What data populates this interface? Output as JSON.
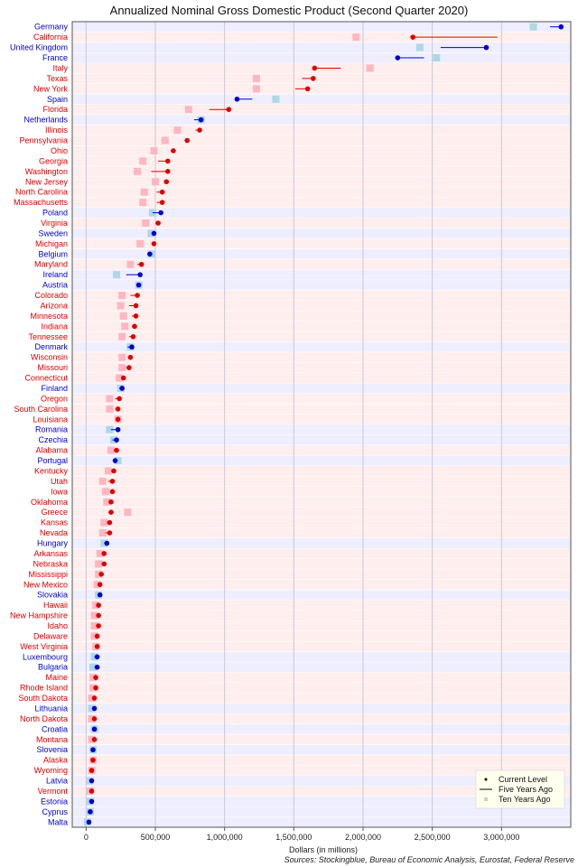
{
  "chart_data": {
    "type": "dot",
    "title": "Annualized Nominal Gross Domestic Product (Second Quarter 2020)",
    "xlabel": "Dollars (in millions)",
    "source": "Sources: Stockingblue, Bureau of Economic Analysis, Eurostat, Federal Reserve",
    "xlim": [
      -100000,
      3500000
    ],
    "xticks": [
      0,
      500000,
      1000000,
      1500000,
      2000000,
      2500000,
      3000000
    ],
    "xtick_labels": [
      "0",
      "500,000",
      "1,000,000",
      "1,500,000",
      "2,000,000",
      "2,500,000",
      "3,000,000"
    ],
    "legend": {
      "position": "bottom-right",
      "entries": [
        "Current Level",
        "Five Years Ago",
        "Ten Years Ago"
      ]
    },
    "colors": {
      "country": "#0000cc",
      "state": "#dd0000",
      "row_country": "#eeeeff",
      "row_state": "#ffeeee",
      "ten_country": "#add8e6",
      "ten_state": "#ffb6c1",
      "grid": "#c8c8d8"
    },
    "series_names": [
      "Current Level",
      "Five Years Ago",
      "Ten Years Ago"
    ],
    "rows": [
      {
        "name": "Germany",
        "type": "country",
        "current": 3430000,
        "five": 3350000,
        "ten": 3230000
      },
      {
        "name": "California",
        "type": "state",
        "current": 2360000,
        "five": 2970000,
        "ten": 1950000
      },
      {
        "name": "United Kingdom",
        "type": "country",
        "current": 2890000,
        "five": 2560000,
        "ten": 2410000
      },
      {
        "name": "France",
        "type": "country",
        "current": 2250000,
        "five": 2440000,
        "ten": 2530000
      },
      {
        "name": "Italy",
        "type": "state",
        "current": 1650000,
        "five": 1840000,
        "ten": 2050000
      },
      {
        "name": "Texas",
        "type": "state",
        "current": 1640000,
        "five": 1560000,
        "ten": 1230000
      },
      {
        "name": "New York",
        "type": "state",
        "current": 1600000,
        "five": 1510000,
        "ten": 1230000
      },
      {
        "name": "Spain",
        "type": "country",
        "current": 1090000,
        "five": 1200000,
        "ten": 1370000
      },
      {
        "name": "Florida",
        "type": "state",
        "current": 1030000,
        "five": 890000,
        "ten": 740000
      },
      {
        "name": "Netherlands",
        "type": "country",
        "current": 830000,
        "five": 780000,
        "ten": 830000
      },
      {
        "name": "Illinois",
        "type": "state",
        "current": 820000,
        "five": 790000,
        "ten": 660000
      },
      {
        "name": "Pennsylvania",
        "type": "state",
        "current": 730000,
        "five": 710000,
        "ten": 570000
      },
      {
        "name": "Ohio",
        "type": "state",
        "current": 630000,
        "five": 610000,
        "ten": 490000
      },
      {
        "name": "Georgia",
        "type": "state",
        "current": 590000,
        "five": 520000,
        "ten": 410000
      },
      {
        "name": "Washington",
        "type": "state",
        "current": 590000,
        "five": 470000,
        "ten": 370000
      },
      {
        "name": "New Jersey",
        "type": "state",
        "current": 580000,
        "five": 570000,
        "ten": 500000
      },
      {
        "name": "North Carolina",
        "type": "state",
        "current": 550000,
        "five": 510000,
        "ten": 420000
      },
      {
        "name": "Massachusetts",
        "type": "state",
        "current": 550000,
        "five": 510000,
        "ten": 410000
      },
      {
        "name": "Poland",
        "type": "country",
        "current": 540000,
        "five": 480000,
        "ten": 480000
      },
      {
        "name": "Virginia",
        "type": "state",
        "current": 520000,
        "five": 500000,
        "ten": 430000
      },
      {
        "name": "Sweden",
        "type": "country",
        "current": 490000,
        "five": 500000,
        "ten": 470000
      },
      {
        "name": "Michigan",
        "type": "state",
        "current": 490000,
        "five": 480000,
        "ten": 390000
      },
      {
        "name": "Belgium",
        "type": "country",
        "current": 460000,
        "five": 460000,
        "ten": 470000
      },
      {
        "name": "Maryland",
        "type": "state",
        "current": 400000,
        "five": 370000,
        "ten": 320000
      },
      {
        "name": "Ireland",
        "type": "country",
        "current": 390000,
        "five": 290000,
        "ten": 220000
      },
      {
        "name": "Austria",
        "type": "country",
        "current": 380000,
        "five": 380000,
        "ten": 380000
      },
      {
        "name": "Colorado",
        "type": "state",
        "current": 370000,
        "five": 320000,
        "ten": 260000
      },
      {
        "name": "Arizona",
        "type": "state",
        "current": 360000,
        "five": 310000,
        "ten": 250000
      },
      {
        "name": "Minnesota",
        "type": "state",
        "current": 360000,
        "five": 330000,
        "ten": 270000
      },
      {
        "name": "Indiana",
        "type": "state",
        "current": 350000,
        "five": 330000,
        "ten": 280000
      },
      {
        "name": "Tennessee",
        "type": "state",
        "current": 340000,
        "five": 310000,
        "ten": 260000
      },
      {
        "name": "Denmark",
        "type": "country",
        "current": 330000,
        "five": 300000,
        "ten": 320000
      },
      {
        "name": "Wisconsin",
        "type": "state",
        "current": 320000,
        "five": 300000,
        "ten": 260000
      },
      {
        "name": "Missouri",
        "type": "state",
        "current": 310000,
        "five": 290000,
        "ten": 260000
      },
      {
        "name": "Connecticut",
        "type": "state",
        "current": 270000,
        "five": 260000,
        "ten": 240000
      },
      {
        "name": "Finland",
        "type": "country",
        "current": 260000,
        "five": 240000,
        "ten": 250000
      },
      {
        "name": "Oregon",
        "type": "state",
        "current": 240000,
        "five": 210000,
        "ten": 170000
      },
      {
        "name": "South Carolina",
        "type": "state",
        "current": 230000,
        "five": 210000,
        "ten": 170000
      },
      {
        "name": "Louisiana",
        "type": "state",
        "current": 230000,
        "five": 240000,
        "ten": 230000
      },
      {
        "name": "Romania",
        "type": "country",
        "current": 230000,
        "five": 180000,
        "ten": 170000
      },
      {
        "name": "Czechia",
        "type": "country",
        "current": 220000,
        "five": 190000,
        "ten": 200000
      },
      {
        "name": "Alabama",
        "type": "state",
        "current": 220000,
        "five": 200000,
        "ten": 180000
      },
      {
        "name": "Portugal",
        "type": "country",
        "current": 210000,
        "five": 200000,
        "ten": 230000
      },
      {
        "name": "Kentucky",
        "type": "state",
        "current": 200000,
        "five": 190000,
        "ten": 160000
      },
      {
        "name": "Utah",
        "type": "state",
        "current": 190000,
        "five": 160000,
        "ten": 120000
      },
      {
        "name": "Iowa",
        "type": "state",
        "current": 190000,
        "five": 180000,
        "ten": 140000
      },
      {
        "name": "Oklahoma",
        "type": "state",
        "current": 180000,
        "five": 190000,
        "ten": 150000
      },
      {
        "name": "Greece",
        "type": "state",
        "current": 180000,
        "five": 200000,
        "ten": 300000
      },
      {
        "name": "Kansas",
        "type": "state",
        "current": 170000,
        "five": 150000,
        "ten": 130000
      },
      {
        "name": "Nevada",
        "type": "state",
        "current": 170000,
        "five": 140000,
        "ten": 120000
      },
      {
        "name": "Hungary",
        "type": "country",
        "current": 150000,
        "five": 130000,
        "ten": 130000
      },
      {
        "name": "Arkansas",
        "type": "state",
        "current": 130000,
        "five": 120000,
        "ten": 100000
      },
      {
        "name": "Nebraska",
        "type": "state",
        "current": 130000,
        "five": 120000,
        "ten": 90000
      },
      {
        "name": "Mississippi",
        "type": "state",
        "current": 110000,
        "five": 110000,
        "ten": 90000
      },
      {
        "name": "New Mexico",
        "type": "state",
        "current": 100000,
        "five": 90000,
        "ten": 80000
      },
      {
        "name": "Slovakia",
        "type": "country",
        "current": 100000,
        "five": 90000,
        "ten": 90000
      },
      {
        "name": "Hawaii",
        "type": "state",
        "current": 90000,
        "five": 80000,
        "ten": 70000
      },
      {
        "name": "New Hampshire",
        "type": "state",
        "current": 90000,
        "five": 80000,
        "ten": 60000
      },
      {
        "name": "Idaho",
        "type": "state",
        "current": 90000,
        "five": 70000,
        "ten": 60000
      },
      {
        "name": "Delaware",
        "type": "state",
        "current": 80000,
        "five": 70000,
        "ten": 60000
      },
      {
        "name": "West Virginia",
        "type": "state",
        "current": 80000,
        "five": 80000,
        "ten": 70000
      },
      {
        "name": "Luxembourg",
        "type": "country",
        "current": 80000,
        "five": 60000,
        "ten": 60000
      },
      {
        "name": "Bulgaria",
        "type": "country",
        "current": 80000,
        "five": 60000,
        "ten": 50000
      },
      {
        "name": "Maine",
        "type": "state",
        "current": 70000,
        "five": 60000,
        "ten": 50000
      },
      {
        "name": "Rhode Island",
        "type": "state",
        "current": 70000,
        "five": 60000,
        "ten": 50000
      },
      {
        "name": "South Dakota",
        "type": "state",
        "current": 60000,
        "five": 50000,
        "ten": 40000
      },
      {
        "name": "Lithuania",
        "type": "country",
        "current": 60000,
        "five": 50000,
        "ten": 40000
      },
      {
        "name": "North Dakota",
        "type": "state",
        "current": 60000,
        "five": 60000,
        "ten": 40000
      },
      {
        "name": "Croatia",
        "type": "country",
        "current": 60000,
        "five": 60000,
        "ten": 60000
      },
      {
        "name": "Montana",
        "type": "state",
        "current": 60000,
        "five": 50000,
        "ten": 40000
      },
      {
        "name": "Slovenia",
        "type": "country",
        "current": 50000,
        "five": 50000,
        "ten": 50000
      },
      {
        "name": "Alaska",
        "type": "state",
        "current": 50000,
        "five": 50000,
        "ten": 50000
      },
      {
        "name": "Wyoming",
        "type": "state",
        "current": 40000,
        "five": 40000,
        "ten": 40000
      },
      {
        "name": "Latvia",
        "type": "country",
        "current": 40000,
        "five": 30000,
        "ten": 30000
      },
      {
        "name": "Vermont",
        "type": "state",
        "current": 40000,
        "five": 30000,
        "ten": 30000
      },
      {
        "name": "Estonia",
        "type": "country",
        "current": 40000,
        "five": 30000,
        "ten": 30000
      },
      {
        "name": "Cyprus",
        "type": "country",
        "current": 30000,
        "five": 30000,
        "ten": 30000
      },
      {
        "name": "Malta",
        "type": "country",
        "current": 20000,
        "five": 20000,
        "ten": 10000
      }
    ]
  }
}
